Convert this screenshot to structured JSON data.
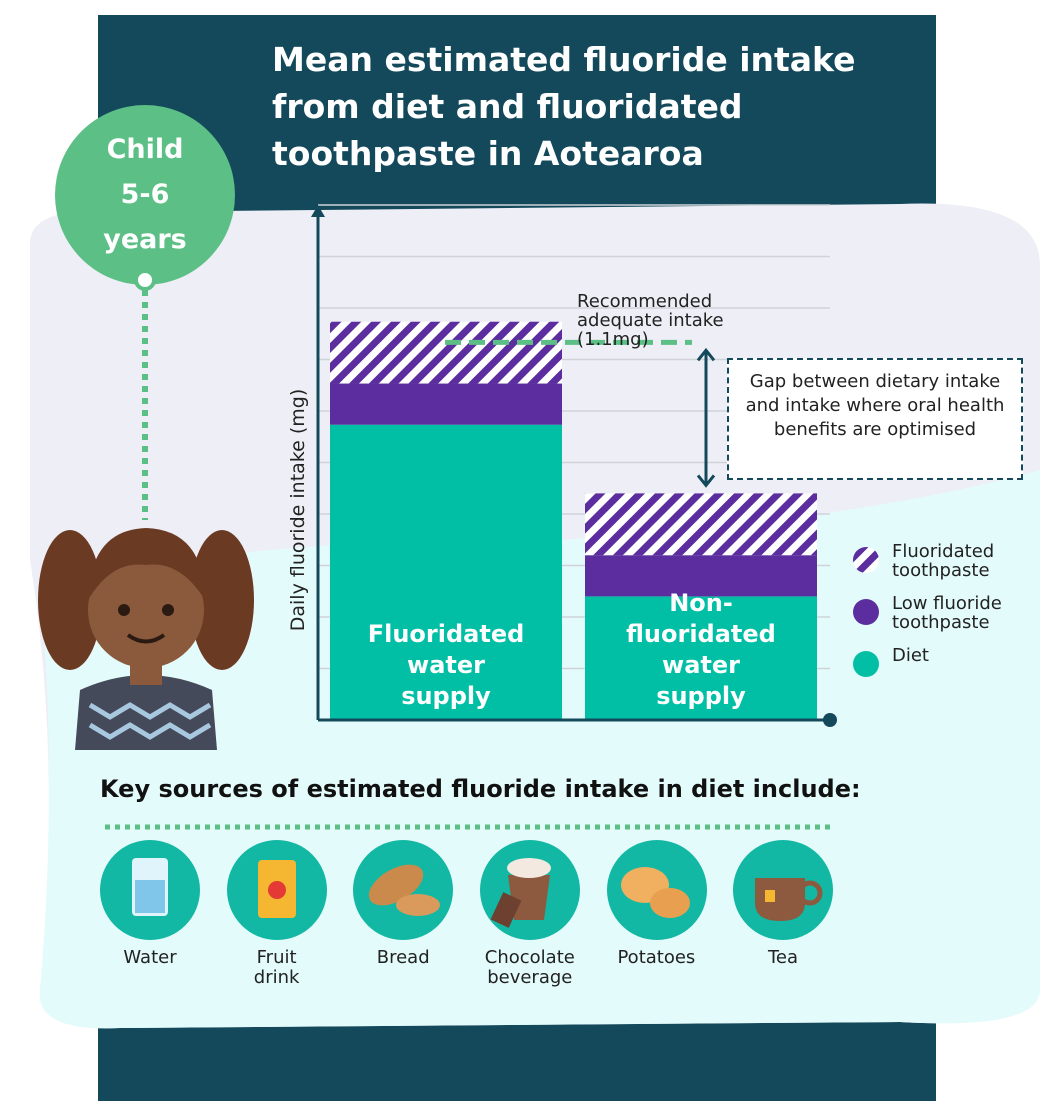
{
  "chart_data": {
    "type": "stacked-bar",
    "title": "Mean estimated fluoride intake from diet and fluoridated toothpaste in Aotearoa",
    "y_label": "Daily fluoride intake (mg)",
    "categories": [
      "Fluoridated water supply",
      "Non-fluoridated water supply"
    ],
    "series": [
      {
        "name": "Diet",
        "color": "#00bfa5",
        "values": [
          0.86,
          0.36
        ]
      },
      {
        "name": "Low fluoride toothpaste",
        "color": "#5b2d9e",
        "values": [
          0.12,
          0.12
        ]
      },
      {
        "name": "Fluoridated toothpaste",
        "color": "#5b2d9e",
        "values": [
          0.18,
          0.18
        ]
      }
    ],
    "ylim": [
      0,
      1.5
    ],
    "yticks": [
      0,
      0.15,
      0.3,
      0.45,
      0.6,
      0.75,
      0.9,
      1.05,
      1.2,
      1.35,
      1.5
    ],
    "grid": true,
    "reference_line": {
      "value": 1.1,
      "label": "Recommended adequate intake (1.1mg)"
    },
    "annotation": "Gap between dietary intake and intake where oral health benefits are optimised",
    "legend": "right"
  },
  "badge": [
    "Child",
    "5-6",
    "years"
  ],
  "sources": {
    "heading": "Key sources of estimated fluoride intake in diet include:",
    "items": [
      "Water",
      "Fruit drink",
      "Bread",
      "Chocolate beverage",
      "Potatoes",
      "Tea"
    ]
  }
}
